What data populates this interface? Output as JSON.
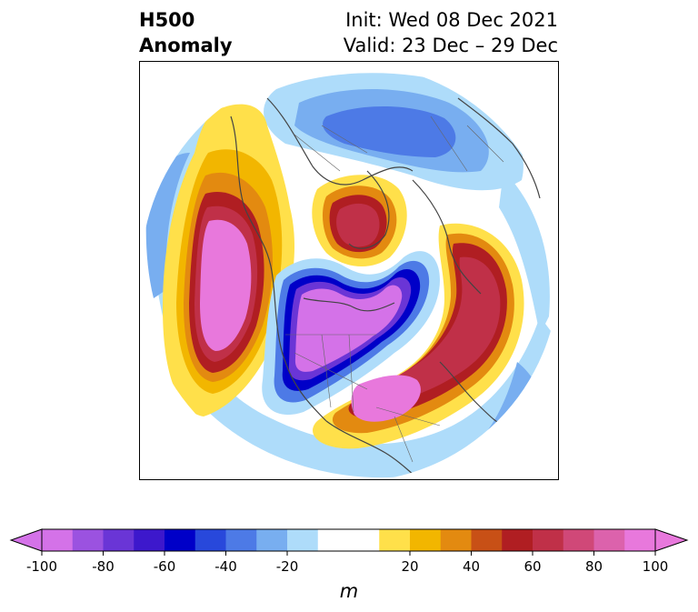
{
  "title": {
    "left_line1": "H500",
    "left_line2": "Anomaly",
    "right_line1": "Init: Wed 08 Dec 2021",
    "right_line2": "Valid: 23 Dec – 29 Dec"
  },
  "colorbar": {
    "unit": "m",
    "ticks": [
      "-100",
      "-80",
      "-60",
      "-40",
      "-20",
      "20",
      "40",
      "60",
      "80",
      "100"
    ],
    "tick_values": [
      -100,
      -80,
      -60,
      -40,
      -20,
      20,
      40,
      60,
      80,
      100
    ],
    "levels": [
      -100,
      -90,
      -80,
      -70,
      -60,
      -50,
      -40,
      -30,
      -20,
      -10,
      10,
      20,
      30,
      40,
      50,
      60,
      70,
      80,
      90,
      100
    ],
    "colors": [
      "#d472e8",
      "#9b52e0",
      "#6a35d6",
      "#3d18cc",
      "#0000c8",
      "#2848db",
      "#4d7ae6",
      "#78aef0",
      "#aedcfa",
      "#ffffff",
      "#ffe04a",
      "#f2b600",
      "#e38a10",
      "#c85016",
      "#b01e22",
      "#c03048",
      "#d04878",
      "#dc62ac",
      "#e878dc"
    ],
    "extend_low_color": "#d472e8",
    "extend_high_color": "#e878dc"
  },
  "map": {
    "projection": "north-polar-stereographic",
    "field": "500 hPa geopotential height anomaly"
  }
}
